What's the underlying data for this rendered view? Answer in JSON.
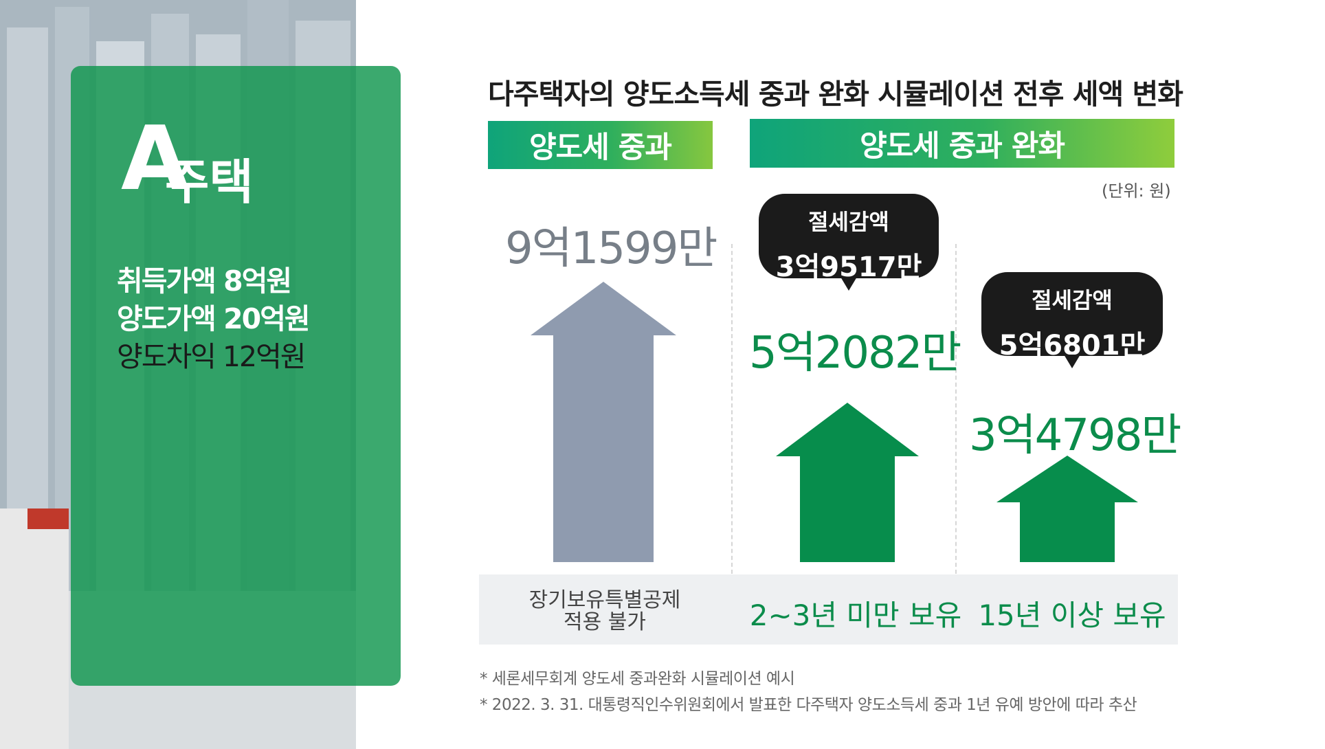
{
  "header": {
    "title": "다주택자의 양도소득세 중과 완화 시뮬레이션 전후 세액 변화"
  },
  "house": {
    "letter": "A",
    "word": "주택",
    "acquisition": "취득가액 8억원",
    "sale": "양도가액 20억원",
    "gain": "양도차익 12억원"
  },
  "banners": {
    "left": "양도세 중과",
    "right": "양도세 중과 완화"
  },
  "unit_label": "(단위: 원)",
  "bubbles": [
    {
      "label": "절세감액",
      "value": "3억9517만"
    },
    {
      "label": "절세감액",
      "value": "5억6801만"
    }
  ],
  "chart_data": {
    "type": "bar",
    "title": "다주택자의 양도소득세 중과 완화 시뮬레이션 전후 세액 변화",
    "unit": "(단위: 원)",
    "categories": [
      "장기보유특별공제 적용 불가",
      "2~3년 미만 보유",
      "15년 이상 보유"
    ],
    "category_lines": [
      [
        "장기보유특별공제",
        "적용 불가"
      ],
      [
        "2~3년 미만 보유"
      ],
      [
        "15년 이상 보유"
      ]
    ],
    "groups": [
      "양도세 중과",
      "양도세 중과 완화",
      "양도세 중과 완화"
    ],
    "values": [
      915990000,
      520820000,
      347980000
    ],
    "value_labels": [
      "9억1599만",
      "5억2082만",
      "3억4798만"
    ],
    "savings": [
      null,
      395170000,
      568010000
    ],
    "savings_labels": [
      null,
      "3억9517만",
      "5억6801만"
    ],
    "colors": {
      "gray_arrow": "#8f9baf",
      "green_arrow": "#078d4c",
      "accent_green": "#0b8c4b",
      "bubble": "#1b1b1b"
    }
  },
  "notes": [
    "* 세론세무회계 양도세 중과완화 시뮬레이션 예시",
    "* 2022. 3. 31. 대통령직인수위원회에서 발표한 다주택자 양도소득세 중과 1년 유예 방안에 따라 추산"
  ]
}
